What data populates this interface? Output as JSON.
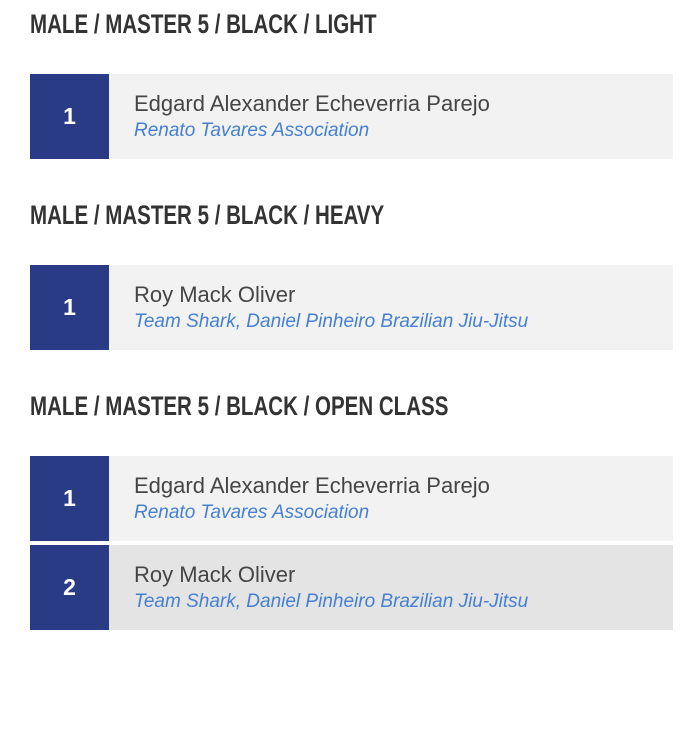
{
  "page": {
    "background_color": "#ffffff"
  },
  "colors": {
    "rank_badge_background": "#2a3b85",
    "rank_badge_text": "#ffffff",
    "row_background": "#f2f2f2",
    "row_background_alternate": "#e4e4e4",
    "category_title_text": "#333333",
    "competitor_name_text": "#454545",
    "team_name_text": "#4580d2"
  },
  "sections": [
    {
      "title": "MALE / MASTER 5 / BLACK / LIGHT",
      "results": [
        {
          "rank": "1",
          "name": "Edgard Alexander Echeverria Parejo",
          "team": "Renato Tavares Association"
        }
      ]
    },
    {
      "title": "MALE / MASTER 5 / BLACK / HEAVY",
      "results": [
        {
          "rank": "1",
          "name": "Roy Mack Oliver",
          "team": "Team Shark, Daniel Pinheiro Brazilian Jiu-Jitsu"
        }
      ]
    },
    {
      "title": "MALE / MASTER 5 / BLACK / OPEN CLASS",
      "results": [
        {
          "rank": "1",
          "name": "Edgard Alexander Echeverria Parejo",
          "team": "Renato Tavares Association"
        },
        {
          "rank": "2",
          "name": "Roy Mack Oliver",
          "team": "Team Shark, Daniel Pinheiro Brazilian Jiu-Jitsu"
        }
      ]
    }
  ]
}
